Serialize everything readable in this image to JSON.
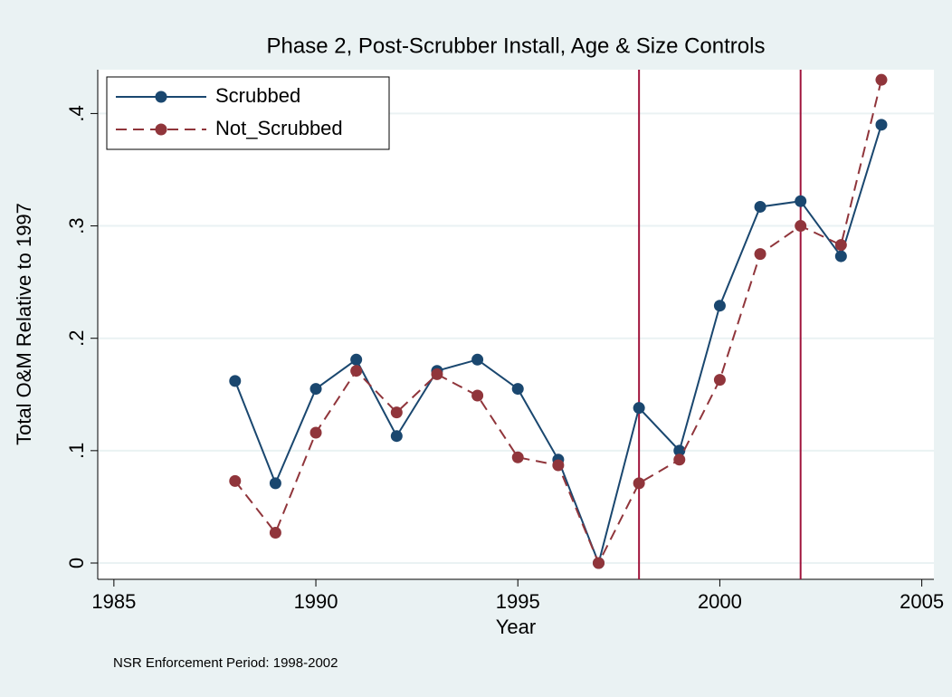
{
  "chart_data": {
    "type": "line",
    "title": "Phase 2, Post-Scrubber Install, Age & Size Controls",
    "x_label": "Year",
    "y_label": "Total O&M Relative to 1997",
    "note": "NSR Enforcement Period: 1998-2002",
    "x": [
      1988,
      1989,
      1990,
      1991,
      1992,
      1993,
      1994,
      1995,
      1996,
      1997,
      1998,
      1999,
      2000,
      2001,
      2002,
      2003,
      2004
    ],
    "series": [
      {
        "name": "Scrubbed",
        "color": "#1a476f",
        "dash": "solid",
        "values": [
          0.162,
          0.071,
          0.155,
          0.181,
          0.113,
          0.171,
          0.181,
          0.155,
          0.092,
          0,
          0.138,
          0.1,
          0.229,
          0.317,
          0.322,
          0.273,
          0.39
        ]
      },
      {
        "name": "Not_Scrubbed",
        "color": "#90353b",
        "dash": "dashed",
        "values": [
          0.073,
          0.027,
          0.116,
          0.171,
          0.134,
          0.168,
          0.149,
          0.094,
          0.087,
          0,
          0.071,
          0.092,
          0.163,
          0.275,
          0.3,
          0.283,
          0.43
        ]
      }
    ],
    "vlines": [
      1998,
      2002
    ],
    "vline_color": "#a0143c",
    "xlim": [
      1984.6,
      2005.3
    ],
    "xticks": [
      1985,
      1990,
      1995,
      2000,
      2005
    ],
    "ylim": [
      -0.0145,
      0.439
    ],
    "yticks": [
      0,
      {
        "value": 0.1,
        "label": ".1"
      },
      {
        "value": 0.2,
        "label": ".2"
      },
      {
        "value": 0.3,
        "label": ".3"
      },
      {
        "value": 0.4,
        "label": ".4"
      }
    ],
    "grid": true,
    "legend_position": "top-left"
  }
}
